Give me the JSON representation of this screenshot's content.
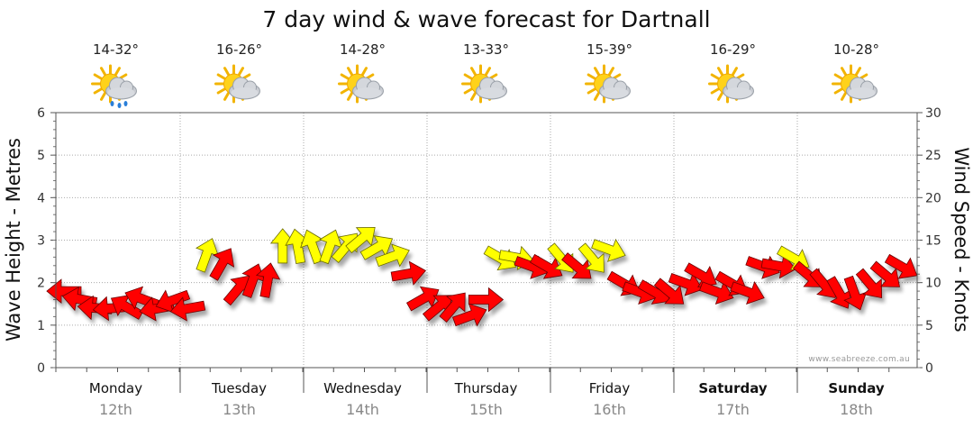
{
  "chart_data": {
    "type": "line",
    "title": "7 day wind & wave forecast for Dartnall",
    "left_axis": {
      "label": "Wave Height - Metres",
      "range": [
        0,
        6
      ],
      "ticks": [
        0,
        1,
        2,
        3,
        4,
        5,
        6
      ]
    },
    "right_axis": {
      "label": "Wind Speed - Knots",
      "range": [
        0,
        30
      ],
      "ticks": [
        0,
        5,
        10,
        15,
        20,
        25,
        30
      ]
    },
    "days": [
      {
        "name": "Monday",
        "date": "12th",
        "temp": "14-32°",
        "weather": "partly-cloudy-showers",
        "bold": false
      },
      {
        "name": "Tuesday",
        "date": "13th",
        "temp": "16-26°",
        "weather": "partly-cloudy",
        "bold": false
      },
      {
        "name": "Wednesday",
        "date": "14th",
        "temp": "14-28°",
        "weather": "partly-cloudy",
        "bold": false
      },
      {
        "name": "Thursday",
        "date": "15th",
        "temp": "13-33°",
        "weather": "partly-cloudy",
        "bold": false
      },
      {
        "name": "Friday",
        "date": "16th",
        "temp": "15-39°",
        "weather": "partly-cloudy",
        "bold": false
      },
      {
        "name": "Saturday",
        "date": "17th",
        "temp": "16-29°",
        "weather": "partly-cloudy",
        "bold": true
      },
      {
        "name": "Sunday",
        "date": "18th",
        "temp": "10-28°",
        "weather": "partly-cloudy",
        "bold": true
      }
    ],
    "hours_per_step": 3,
    "wind_series": {
      "name": "Wind Speed (knots) with direction",
      "speeds": [
        9,
        8,
        7,
        7,
        7,
        8,
        7,
        8,
        7,
        13,
        12,
        9,
        10,
        10,
        14,
        14,
        14,
        14,
        14,
        15,
        14,
        13,
        11,
        8,
        7,
        7,
        6,
        8,
        13,
        13,
        12,
        12,
        13,
        12,
        13,
        14,
        10,
        9,
        9,
        9,
        10,
        11,
        9,
        10,
        9,
        12,
        12,
        13,
        11,
        10,
        9,
        9,
        10,
        11,
        12,
        11,
        12,
        10,
        11,
        10,
        9,
        10,
        11,
        12,
        13,
        13,
        12,
        13,
        10,
        10,
        9,
        9,
        10,
        12,
        13,
        14,
        15,
        16,
        10,
        7,
        5,
        4,
        4,
        5,
        7,
        6,
        6,
        7,
        9,
        11,
        10,
        8,
        6
      ],
      "directions_deg": [
        90,
        100,
        95,
        85,
        120,
        110,
        80,
        70,
        80,
        200,
        210,
        220,
        200,
        190,
        180,
        170,
        160,
        200,
        220,
        230,
        240,
        250,
        260,
        240,
        230,
        220,
        250,
        270,
        300,
        280,
        290,
        300,
        320,
        310,
        320,
        290,
        300,
        290,
        300,
        310,
        290,
        300,
        290,
        300,
        290,
        290,
        280,
        300,
        310,
        320,
        330,
        340,
        320,
        310,
        300,
        310,
        320,
        330,
        340,
        330,
        320,
        310,
        300,
        290,
        280,
        270,
        260,
        250,
        240,
        230,
        220,
        215,
        220,
        230,
        225,
        220,
        215,
        210,
        180,
        170,
        160,
        150,
        155,
        165,
        175,
        180,
        180,
        175,
        185,
        200,
        210,
        220,
        240
      ]
    },
    "credit": "www.seabreeze.com.au"
  }
}
